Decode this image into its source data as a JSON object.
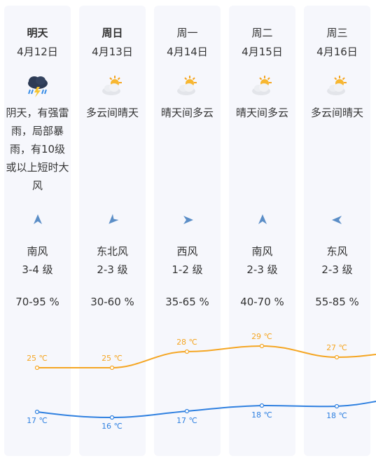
{
  "forecast": [
    {
      "day": "明天",
      "date": "4月12日",
      "icon": "thunderstorm-icon",
      "desc": "阴天，有强雷雨，局部暴雨，有10级或以上短时大风",
      "wind_dir": "南风",
      "wind_level": "3-4 级",
      "humidity": "70-95 %",
      "high": "25 ℃",
      "low": "17 ℃"
    },
    {
      "day": "周日",
      "date": "4月13日",
      "icon": "partly-cloudy-icon",
      "desc": "多云间晴天",
      "wind_dir": "东北风",
      "wind_level": "2-3 级",
      "humidity": "30-60 %",
      "high": "25 ℃",
      "low": "16 ℃"
    },
    {
      "day": "周一",
      "date": "4月14日",
      "icon": "partly-cloudy-icon",
      "desc": "晴天间多云",
      "wind_dir": "西风",
      "wind_level": "1-2 级",
      "humidity": "35-65 %",
      "high": "28 ℃",
      "low": "17 ℃"
    },
    {
      "day": "周二",
      "date": "4月15日",
      "icon": "partly-cloudy-icon",
      "desc": "晴天间多云",
      "wind_dir": "南风",
      "wind_level": "2-3 级",
      "humidity": "40-70 %",
      "high": "29 ℃",
      "low": "18 ℃"
    },
    {
      "day": "周三",
      "date": "4月16日",
      "icon": "partly-cloudy-icon",
      "desc": "多云间晴天",
      "wind_dir": "东风",
      "wind_level": "2-3 级",
      "humidity": "55-85 %",
      "high": "27 ℃",
      "low": "18 ℃"
    }
  ],
  "colors": {
    "high_line": "#f5a623",
    "low_line": "#2f80e0",
    "arrow": "#5b8ec7",
    "column_bg": "#f6f7fc"
  }
}
